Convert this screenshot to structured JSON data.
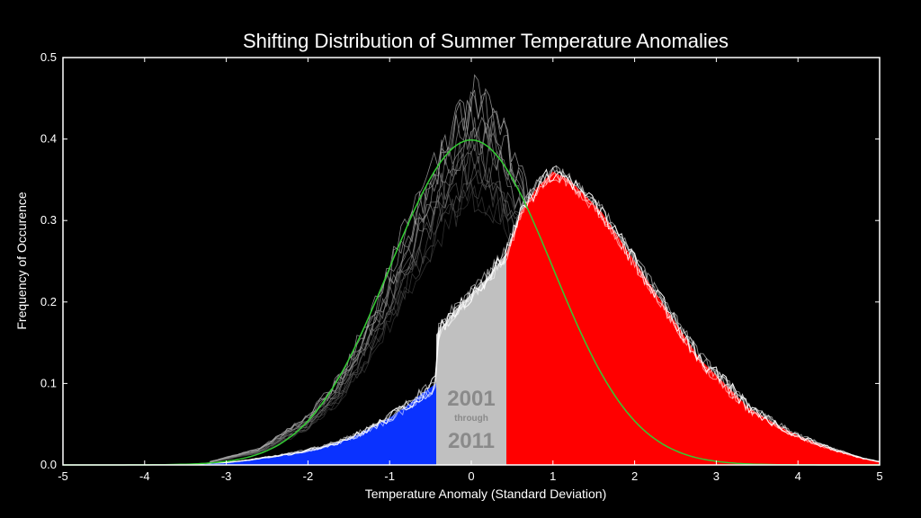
{
  "chart_data": {
    "type": "area",
    "title": "Shifting Distribution of Summer Temperature Anomalies",
    "xlabel": "Temperature Anomaly (Standard Deviation)",
    "ylabel": "Frequency of Occurence",
    "xlim": [
      -5,
      5
    ],
    "ylim": [
      0,
      0.5
    ],
    "xticks": [
      -5,
      -4,
      -3,
      -2,
      -1,
      0,
      1,
      2,
      3,
      4,
      5
    ],
    "yticks": [
      0.0,
      0.1,
      0.2,
      0.3,
      0.4,
      0.5
    ],
    "ytick_labels": [
      "0.0",
      "0.1",
      "0.2",
      "0.3",
      "0.4",
      "0.5"
    ],
    "period_label": {
      "start": "2001",
      "middle": "through",
      "end": "2011"
    },
    "bands": [
      {
        "name": "cold",
        "from": -5,
        "to": -0.43,
        "color": "#0a32ff"
      },
      {
        "name": "normal",
        "from": -0.43,
        "to": 0.43,
        "color": "#c0c0c0"
      },
      {
        "name": "hot",
        "from": 0.43,
        "to": 5,
        "color": "#ff0000"
      }
    ],
    "reference_curve": {
      "name": "normal distribution",
      "mean": 0,
      "sd": 1,
      "color": "#33cc33"
    },
    "distribution": {
      "x": [
        -4.2,
        -3.8,
        -3.4,
        -3.0,
        -2.8,
        -2.6,
        -2.4,
        -2.2,
        -2.0,
        -1.8,
        -1.6,
        -1.4,
        -1.2,
        -1.0,
        -0.8,
        -0.6,
        -0.43,
        -0.43,
        -0.2,
        0.0,
        0.2,
        0.43,
        0.43,
        0.6,
        0.8,
        1.0,
        1.2,
        1.4,
        1.6,
        1.8,
        2.0,
        2.2,
        2.4,
        2.6,
        2.8,
        3.0,
        3.2,
        3.4,
        3.6,
        3.8,
        4.0,
        4.2,
        4.4,
        4.6,
        4.8,
        5.0
      ],
      "y": [
        0.0,
        0.0,
        0.001,
        0.003,
        0.005,
        0.008,
        0.011,
        0.014,
        0.018,
        0.023,
        0.029,
        0.037,
        0.047,
        0.058,
        0.072,
        0.088,
        0.1,
        0.16,
        0.19,
        0.21,
        0.23,
        0.26,
        0.26,
        0.31,
        0.34,
        0.36,
        0.35,
        0.33,
        0.31,
        0.28,
        0.25,
        0.22,
        0.19,
        0.16,
        0.13,
        0.11,
        0.09,
        0.07,
        0.058,
        0.046,
        0.036,
        0.028,
        0.02,
        0.014,
        0.008,
        0.004
      ]
    },
    "background_ensemble": {
      "x": [
        -3.2,
        -2.6,
        -2.0,
        -1.6,
        -1.2,
        -0.8,
        -0.4,
        -0.2,
        0.0,
        0.2,
        0.4,
        0.6,
        0.9,
        1.2,
        1.6,
        2.0,
        2.6,
        3.0
      ],
      "upper": [
        0.004,
        0.02,
        0.06,
        0.11,
        0.19,
        0.29,
        0.38,
        0.42,
        0.45,
        0.44,
        0.41,
        0.35,
        0.31,
        0.25,
        0.17,
        0.1,
        0.04,
        0.015
      ]
    }
  }
}
